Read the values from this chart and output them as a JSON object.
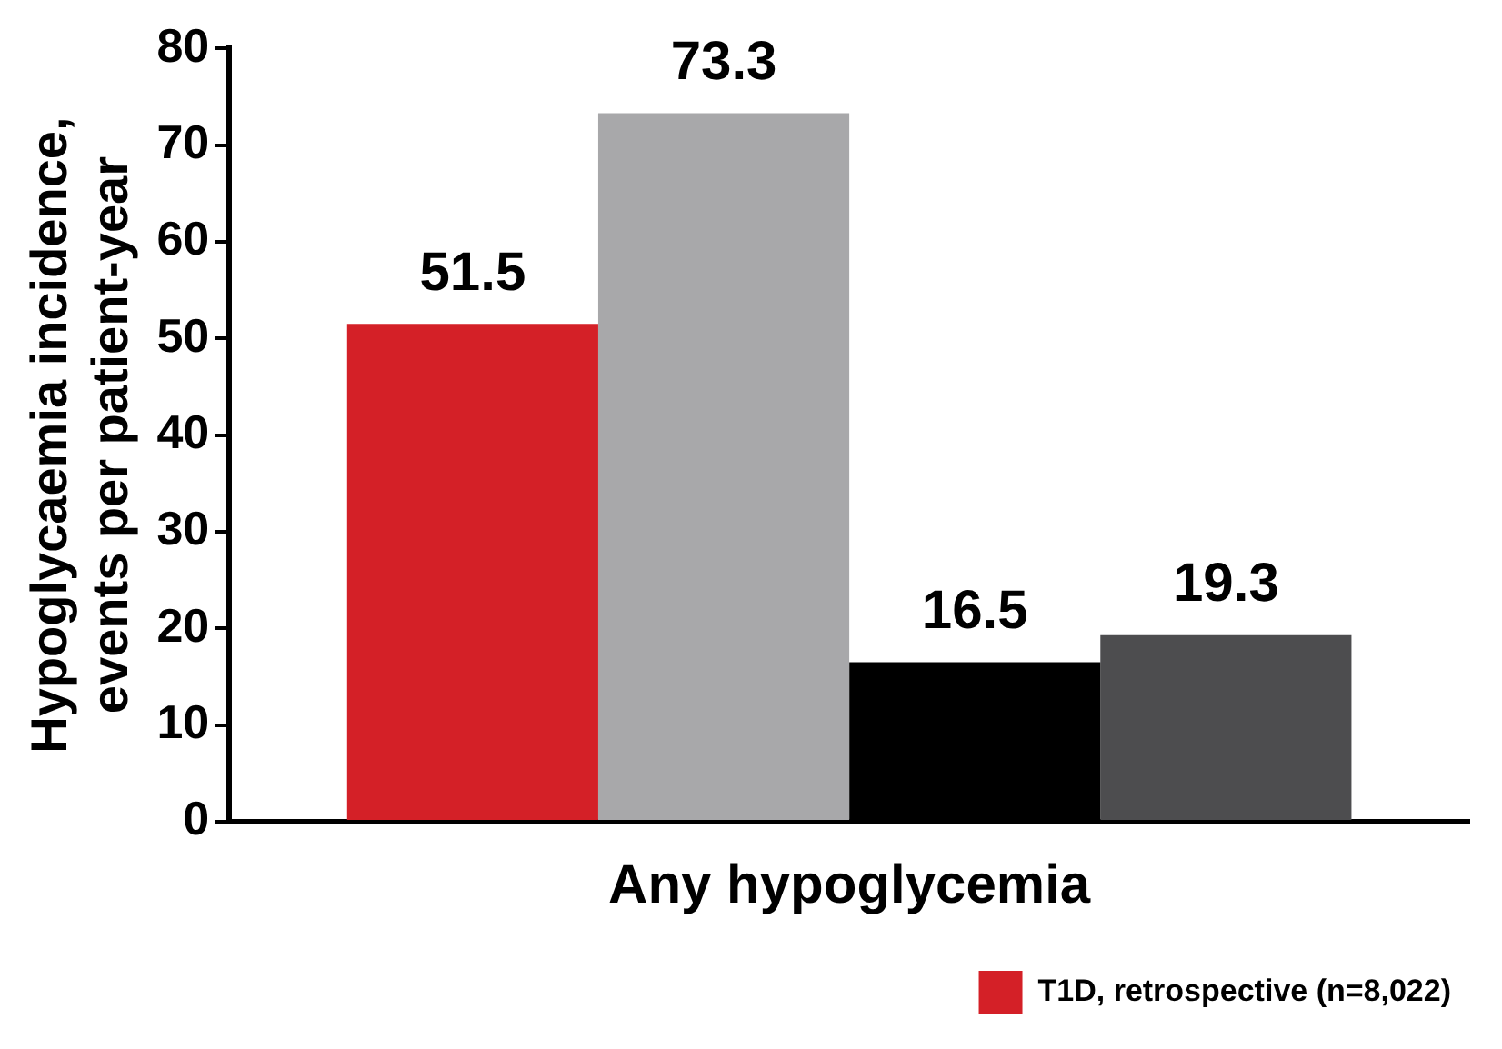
{
  "chart_data": {
    "type": "bar",
    "ylabel": "Hypoglycaemia incidence,\nevents per patient-year",
    "categories": [
      "Any hypoglycemia"
    ],
    "series": [
      {
        "name": "T1D, retrospective (n=8,022)",
        "color": "#d42027",
        "values": [
          51.5
        ]
      },
      {
        "color": "#a8a8aa",
        "values": [
          73.3
        ]
      },
      {
        "color": "#000000",
        "values": [
          16.5
        ]
      },
      {
        "color": "#4d4d4f",
        "values": [
          19.3
        ]
      }
    ],
    "ylim": [
      0,
      80
    ],
    "yticks": [
      0,
      10,
      20,
      30,
      40,
      50,
      60,
      70,
      80
    ],
    "data_labels": true,
    "legend": "bottom",
    "grid": false
  }
}
